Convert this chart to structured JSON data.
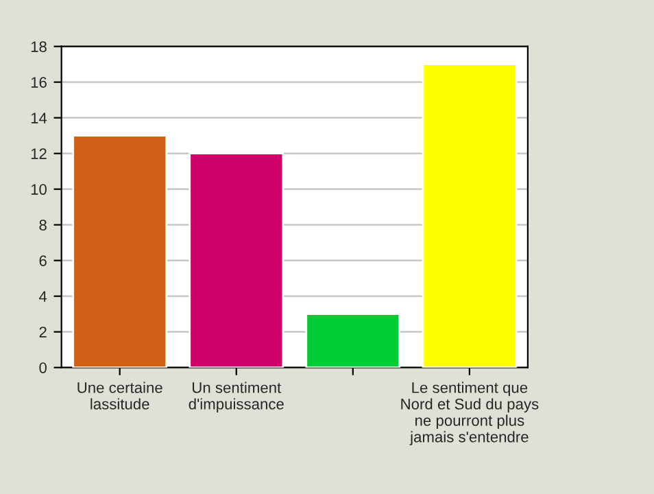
{
  "chart_data": {
    "type": "bar",
    "categories": [
      "Une certaine\nlassitude",
      "Un sentiment\nd'impuissance",
      null,
      "Le sentiment que\nNord et Sud du pays\nne pourront plus\njamais s'entendre"
    ],
    "values": [
      13,
      12,
      3,
      17
    ],
    "colors": [
      "#d06016",
      "#d0006a",
      "#00cc33",
      "#ffff00"
    ],
    "ylim": [
      0,
      18
    ],
    "yticks": [
      0,
      2,
      4,
      6,
      8,
      10,
      12,
      14,
      16,
      18
    ],
    "grid": "y"
  }
}
